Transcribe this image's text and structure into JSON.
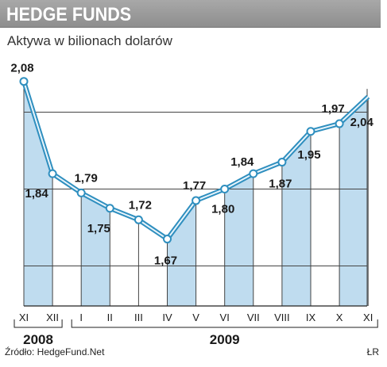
{
  "header": {
    "title": "HEDGE FUNDS"
  },
  "subtitle": "Aktywa w bilionach dolarów",
  "source": "Źródło: HedgeFund.Net",
  "author": "ŁR",
  "colors": {
    "bar_fill": "#bfdcef",
    "line": "#2f8fbf",
    "marker_fill": "#ffffff",
    "grid": "#444444",
    "header_bg": "#9a9a9a"
  },
  "chart_data": {
    "type": "line",
    "title": "",
    "xlabel": "",
    "ylabel": "Aktywa w bilionach dolarów",
    "categories": [
      "XI",
      "XII",
      "I",
      "II",
      "III",
      "IV",
      "V",
      "VI",
      "VII",
      "VIII",
      "IX",
      "X",
      "XI"
    ],
    "years": [
      {
        "label": "2008",
        "from_index": 0,
        "to_index": 1
      },
      {
        "label": "2009",
        "from_index": 2,
        "to_index": 12
      }
    ],
    "series": [
      {
        "values": [
          2.08,
          1.84,
          1.79,
          1.75,
          1.72,
          1.67,
          1.77,
          1.8,
          1.84,
          1.87,
          1.95,
          1.97,
          2.04
        ]
      }
    ],
    "value_labels": [
      "2,08",
      "1,84",
      "1,79",
      "1,75",
      "1,72",
      "1,67",
      "1,77",
      "1,80",
      "1,84",
      "1,87",
      "1,95",
      "1,97",
      "2,04"
    ],
    "ylim": [
      1.5,
      2.1
    ],
    "grid": true
  }
}
